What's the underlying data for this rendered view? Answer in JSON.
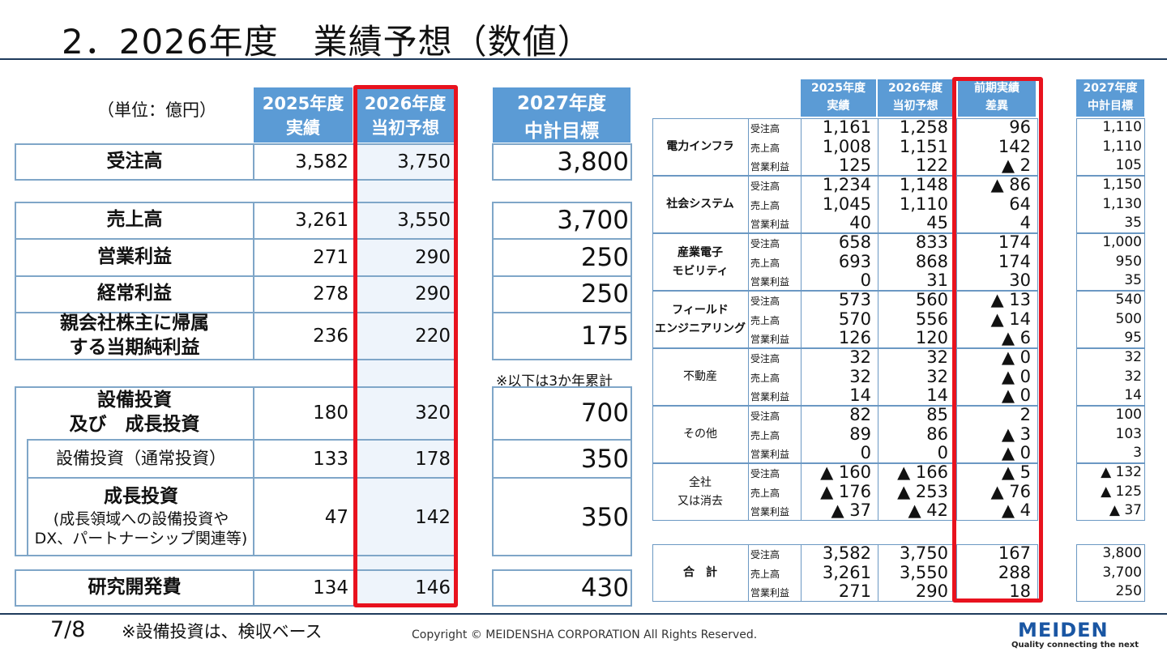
{
  "title": "2．2026年度　業績予想（数値）",
  "unit": "（単位：億円）",
  "left": {
    "headers": [
      {
        "line1": "2025年度",
        "line2": "実績"
      },
      {
        "line1": "2026年度",
        "line2": "当初予想"
      },
      {
        "line1": "2027年度",
        "line2": "中計目標"
      }
    ],
    "rows": [
      {
        "label": "受注高",
        "v2025": "3,582",
        "v2026": "3,750",
        "v2027": "3,800"
      },
      {
        "label": "売上高",
        "v2025": "3,261",
        "v2026": "3,550",
        "v2027": "3,700"
      },
      {
        "label": "営業利益",
        "v2025": "271",
        "v2026": "290",
        "v2027": "250"
      },
      {
        "label": "経常利益",
        "v2025": "278",
        "v2026": "290",
        "v2027": "250"
      },
      {
        "label": "親会社株主に帰属",
        "label2": "する当期純利益",
        "v2025": "236",
        "v2026": "220",
        "v2027": "175"
      },
      {
        "label": "設備投資",
        "label2": "及び　成長投資",
        "v2025": "180",
        "v2026": "320",
        "v2027": "700"
      },
      {
        "label": "設備投資（通常投資）",
        "v2025": "133",
        "v2026": "178",
        "v2027": "350"
      },
      {
        "label": "成長投資",
        "label2": "(成長領域への設備投資や",
        "label3": "DX、パートナーシップ関連等)",
        "v2025": "47",
        "v2026": "142",
        "v2027": "350"
      },
      {
        "label": "研究開発費",
        "v2025": "134",
        "v2026": "146",
        "v2027": "430"
      }
    ],
    "cumulative_note": "※以下は3か年累計"
  },
  "right": {
    "headers": [
      {
        "line1": "2025年度",
        "line2": "実績"
      },
      {
        "line1": "2026年度",
        "line2": "当初予想"
      },
      {
        "line1": "前期実績",
        "line2": "差異"
      },
      {
        "line1": "2027年度",
        "line2": "中計目標"
      }
    ],
    "metrics": [
      "受注高",
      "売上高",
      "営業利益"
    ],
    "segments": [
      {
        "name": "電力インフラ",
        "rows": [
          [
            "1,161",
            "1,258",
            "96",
            "1,110"
          ],
          [
            "1,008",
            "1,151",
            "142",
            "1,110"
          ],
          [
            "125",
            "122",
            "▲ 2",
            "105"
          ]
        ]
      },
      {
        "name": "社会システム",
        "rows": [
          [
            "1,234",
            "1,148",
            "▲ 86",
            "1,150"
          ],
          [
            "1,045",
            "1,110",
            "64",
            "1,130"
          ],
          [
            "40",
            "45",
            "4",
            "35"
          ]
        ]
      },
      {
        "name": "産業電子",
        "name2": "モビリティ",
        "rows": [
          [
            "658",
            "833",
            "174",
            "1,000"
          ],
          [
            "693",
            "868",
            "174",
            "950"
          ],
          [
            "0",
            "31",
            "30",
            "35"
          ]
        ]
      },
      {
        "name": "フィールド",
        "name2": "エンジニアリング",
        "rows": [
          [
            "573",
            "560",
            "▲ 13",
            "540"
          ],
          [
            "570",
            "556",
            "▲ 14",
            "500"
          ],
          [
            "126",
            "120",
            "▲ 6",
            "95"
          ]
        ]
      },
      {
        "name": "不動産",
        "rows": [
          [
            "32",
            "32",
            "▲ 0",
            "32"
          ],
          [
            "32",
            "32",
            "▲ 0",
            "32"
          ],
          [
            "14",
            "14",
            "▲ 0",
            "14"
          ]
        ]
      },
      {
        "name": "その他",
        "rows": [
          [
            "82",
            "85",
            "2",
            "100"
          ],
          [
            "89",
            "86",
            "▲ 3",
            "103"
          ],
          [
            "0",
            "0",
            "▲ 0",
            "3"
          ]
        ]
      },
      {
        "name": "全社",
        "name2": "又は消去",
        "rows": [
          [
            "▲ 160",
            "▲ 166",
            "▲ 5",
            "▲ 132"
          ],
          [
            "▲ 176",
            "▲ 253",
            "▲ 76",
            "▲ 125"
          ],
          [
            "▲ 37",
            "▲ 42",
            "▲ 4",
            "▲ 37"
          ]
        ]
      }
    ],
    "total": {
      "name": "合　計",
      "rows": [
        [
          "3,582",
          "3,750",
          "167",
          "3,800"
        ],
        [
          "3,261",
          "3,550",
          "288",
          "3,700"
        ],
        [
          "271",
          "290",
          "18",
          "250"
        ]
      ]
    }
  },
  "footer": {
    "page": "7/8",
    "note": "※設備投資は、検収ベース",
    "copyright": "Copyright © MEIDENSHA CORPORATION All Rights Reserved.",
    "logo": "MEIDEN",
    "tagline": "Quality connecting the next"
  },
  "colors": {
    "header_bg": "#5b9bd5",
    "border": "#7fa6c8",
    "highlight": "#e8121e",
    "rule": "#1f3b5c"
  }
}
